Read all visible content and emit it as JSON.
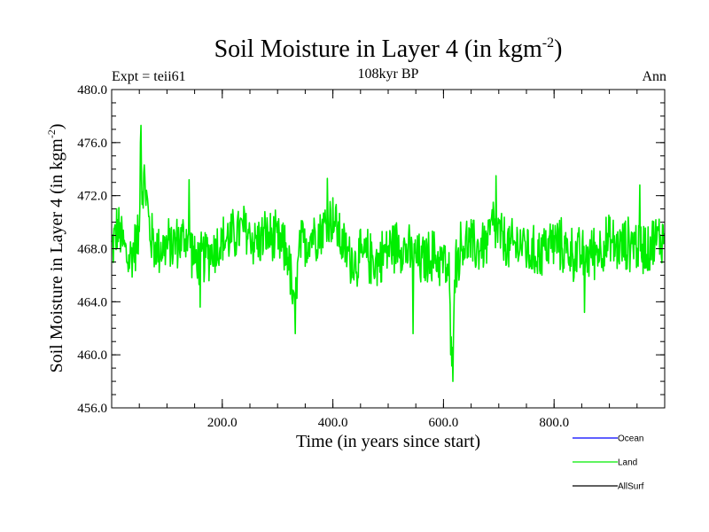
{
  "chart_data": {
    "type": "line",
    "title": "Soil Moisture in Layer 4 (in kgm",
    "title_superscript": "-2",
    "title_close": ")",
    "subtitle": "108kyr BP",
    "left_label": "Expt = teii61",
    "right_label": "Ann",
    "xlabel": "Time (in years since start)",
    "ylabel": "Soil Moisture in Layer 4 (in kgm",
    "ylabel_superscript": "-2",
    "ylabel_close": ")",
    "xlim": [
      0,
      1000
    ],
    "ylim": [
      456.0,
      480.0
    ],
    "xticks": [
      200.0,
      400.0,
      600.0,
      800.0
    ],
    "xtick_labels": [
      "200.0",
      "400.0",
      "600.0",
      "800.0"
    ],
    "yticks": [
      456.0,
      460.0,
      464.0,
      468.0,
      472.0,
      476.0,
      480.0
    ],
    "ytick_labels": [
      "456.0",
      "460.0",
      "464.0",
      "468.0",
      "472.0",
      "476.0",
      "480.0"
    ],
    "grid": false,
    "legend_position": "bottom-right",
    "series": [
      {
        "name": "Ocean",
        "color": "#0000ff",
        "values": []
      },
      {
        "name": "Land",
        "color": "#00ee00",
        "base_x": [
          0,
          10,
          20,
          30,
          40,
          50,
          52,
          55,
          60,
          65,
          70,
          80,
          100,
          120,
          140,
          150,
          170,
          200,
          220,
          240,
          260,
          280,
          300,
          320,
          330,
          340,
          360,
          380,
          400,
          420,
          440,
          460,
          480,
          500,
          520,
          540,
          560,
          580,
          600,
          610,
          615,
          620,
          630,
          640,
          660,
          680,
          690,
          700,
          720,
          740,
          760,
          780,
          800,
          820,
          840,
          860,
          880,
          900,
          920,
          940,
          960,
          980,
          1000
        ],
        "base_y": [
          468.0,
          469.5,
          468.5,
          467.0,
          468.0,
          469.0,
          477.3,
          472.5,
          473.0,
          471.0,
          469.0,
          468.0,
          468.2,
          468.5,
          469.0,
          467.0,
          467.5,
          468.5,
          469.0,
          469.5,
          468.5,
          469.0,
          468.5,
          467.5,
          463.0,
          468.0,
          469.0,
          469.5,
          470.5,
          468.0,
          467.0,
          467.5,
          467.0,
          468.0,
          468.5,
          467.5,
          467.0,
          467.5,
          467.0,
          466.0,
          458.0,
          466.5,
          468.0,
          468.5,
          468.0,
          468.5,
          470.0,
          469.0,
          468.0,
          468.5,
          467.5,
          468.0,
          468.5,
          468.0,
          467.5,
          467.5,
          468.0,
          468.5,
          468.0,
          468.5,
          468.0,
          468.5,
          469.0
        ],
        "noise_amplitude": 2.4,
        "spikes": [
          {
            "x": 53,
            "y": 477.3
          },
          {
            "x": 332,
            "y": 461.6
          },
          {
            "x": 545,
            "y": 461.6
          },
          {
            "x": 617,
            "y": 458.0
          },
          {
            "x": 695,
            "y": 473.5
          },
          {
            "x": 390,
            "y": 473.3
          },
          {
            "x": 140,
            "y": 473.2
          },
          {
            "x": 955,
            "y": 472.8
          },
          {
            "x": 160,
            "y": 463.6
          },
          {
            "x": 855,
            "y": 463.2
          }
        ]
      },
      {
        "name": "AllSurf",
        "color": "#000000",
        "values": []
      }
    ]
  }
}
